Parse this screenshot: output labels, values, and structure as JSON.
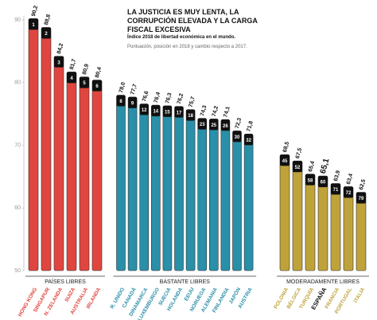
{
  "chart_data": {
    "type": "bar",
    "title": "LA JUSTICIA ES MUY LENTA, LA CORRUPCIÓN ELEVADA Y LA CARGA FISCAL EXCESIVA",
    "subtitle": "Índice 2018 de libertad económica en el mundo.",
    "note": "Puntuación, posición en 2018 y cambio respecto a 2017.",
    "ylim": [
      50,
      90
    ],
    "yticks": [
      50,
      60,
      70,
      80,
      90
    ],
    "groups": [
      {
        "name": "PAÍSES LIBRES",
        "color": "#e0463f",
        "categories": [
          "HONG KONG",
          "SINGAPUR",
          "N. ZELANDA",
          "SUIZA",
          "AUSTRALIA",
          "IRLANDA"
        ],
        "values": [
          90.2,
          88.8,
          84.2,
          81.7,
          80.9,
          80.4
        ],
        "value_labels": [
          "90,2",
          "88,8",
          "84,2",
          "81,7",
          "80,9",
          "80,4"
        ],
        "ranks": [
          1,
          2,
          3,
          4,
          5,
          6
        ]
      },
      {
        "name": "BASTANTE LIBRES",
        "color": "#2a8fa8",
        "categories": [
          "R. UNIDO",
          "CANADÁ",
          "DINAMARCA",
          "LUXEMBURGO",
          "SUECIA",
          "HOLANDA",
          "EEUU",
          "NORUEGA",
          "ALEMANIA",
          "FINLANDIA",
          "JAPÓN",
          "AUSTRIA"
        ],
        "values": [
          78.0,
          77.7,
          76.6,
          76.4,
          76.3,
          76.2,
          75.7,
          74.3,
          74.2,
          74.1,
          72.3,
          71.8
        ],
        "value_labels": [
          "78,0",
          "77,7",
          "76,6",
          "76,4",
          "76,3",
          "76,2",
          "75,7",
          "74,3",
          "74,2",
          "74,1",
          "72,3",
          "71,8"
        ],
        "ranks": [
          8,
          9,
          12,
          14,
          15,
          17,
          18,
          23,
          25,
          26,
          30,
          32
        ]
      },
      {
        "name": "MODERADAMENTE LIBRES",
        "color": "#bfa33a",
        "categories": [
          "POLONIA",
          "BÉLGICA",
          "TURQUÍA",
          "ESPAÑA",
          "FRANCIA",
          "PORTUGAL",
          "ITALIA"
        ],
        "values": [
          68.5,
          67.5,
          65.4,
          65.1,
          63.9,
          63.4,
          62.5
        ],
        "value_labels": [
          "68,5",
          "67,5",
          "65,4",
          "65,1",
          "63,9",
          "63,4",
          "62,5"
        ],
        "ranks": [
          45,
          52,
          58,
          60,
          71,
          72,
          79
        ]
      }
    ]
  }
}
